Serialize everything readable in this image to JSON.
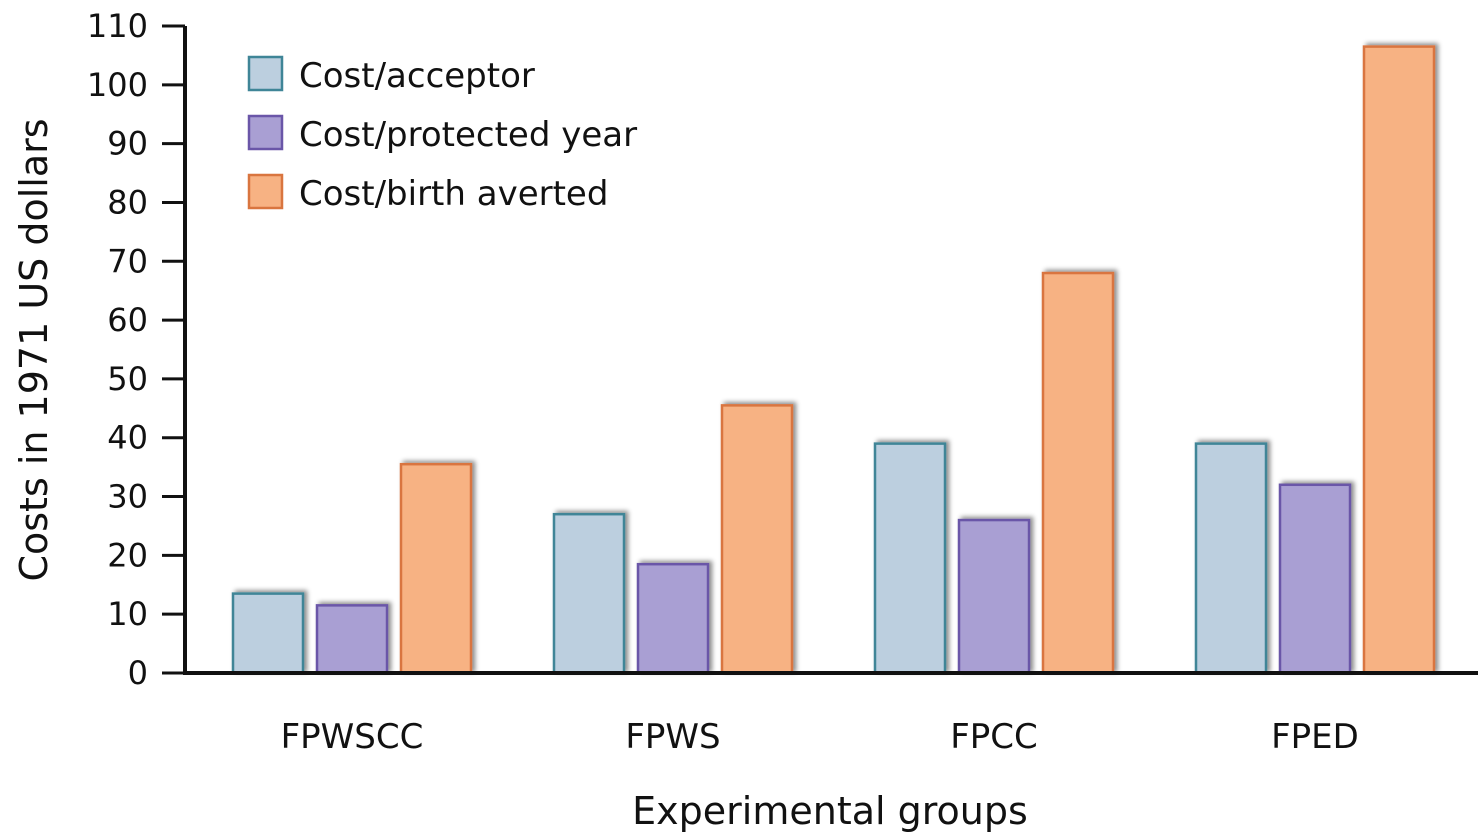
{
  "chart_data": {
    "type": "bar",
    "title": "",
    "xlabel": "Experimental groups",
    "ylabel": "Costs in 1971 US dollars",
    "ylim": [
      0,
      110
    ],
    "yticks": [
      0,
      10,
      20,
      30,
      40,
      50,
      60,
      70,
      80,
      90,
      100,
      110
    ],
    "grid": false,
    "legend_position": "top-left",
    "categories": [
      "FPWSCC",
      "FPWS",
      "FPCC",
      "FPED"
    ],
    "series": [
      {
        "name": "Cost/acceptor",
        "values": [
          13.5,
          27,
          39,
          39
        ],
        "fill": "#bccfdf",
        "stroke": "#3f8597"
      },
      {
        "name": "Cost/protected year",
        "values": [
          11.5,
          18.5,
          26,
          32
        ],
        "fill": "#a99fd3",
        "stroke": "#6a56a8"
      },
      {
        "name": "Cost/birth averted",
        "values": [
          35.5,
          45.5,
          68,
          106.5
        ],
        "fill": "#f7b283",
        "stroke": "#d9753f"
      }
    ]
  }
}
